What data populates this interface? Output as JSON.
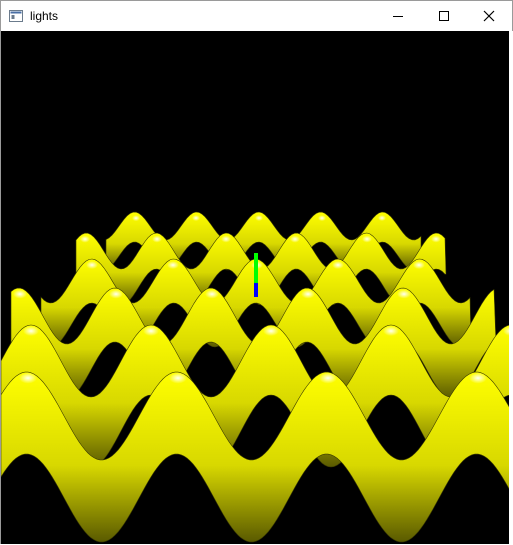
{
  "window": {
    "title": "lights",
    "controls": {
      "minimize": "minimize-icon",
      "maximize": "maximize-icon",
      "close": "close-icon"
    }
  },
  "scene": {
    "background_color": "#000000",
    "surface_color": "#ffff00",
    "highlight_color": "#ffffff",
    "axes_colors": {
      "up": "#00ff00",
      "forward": "#0000ff"
    }
  }
}
